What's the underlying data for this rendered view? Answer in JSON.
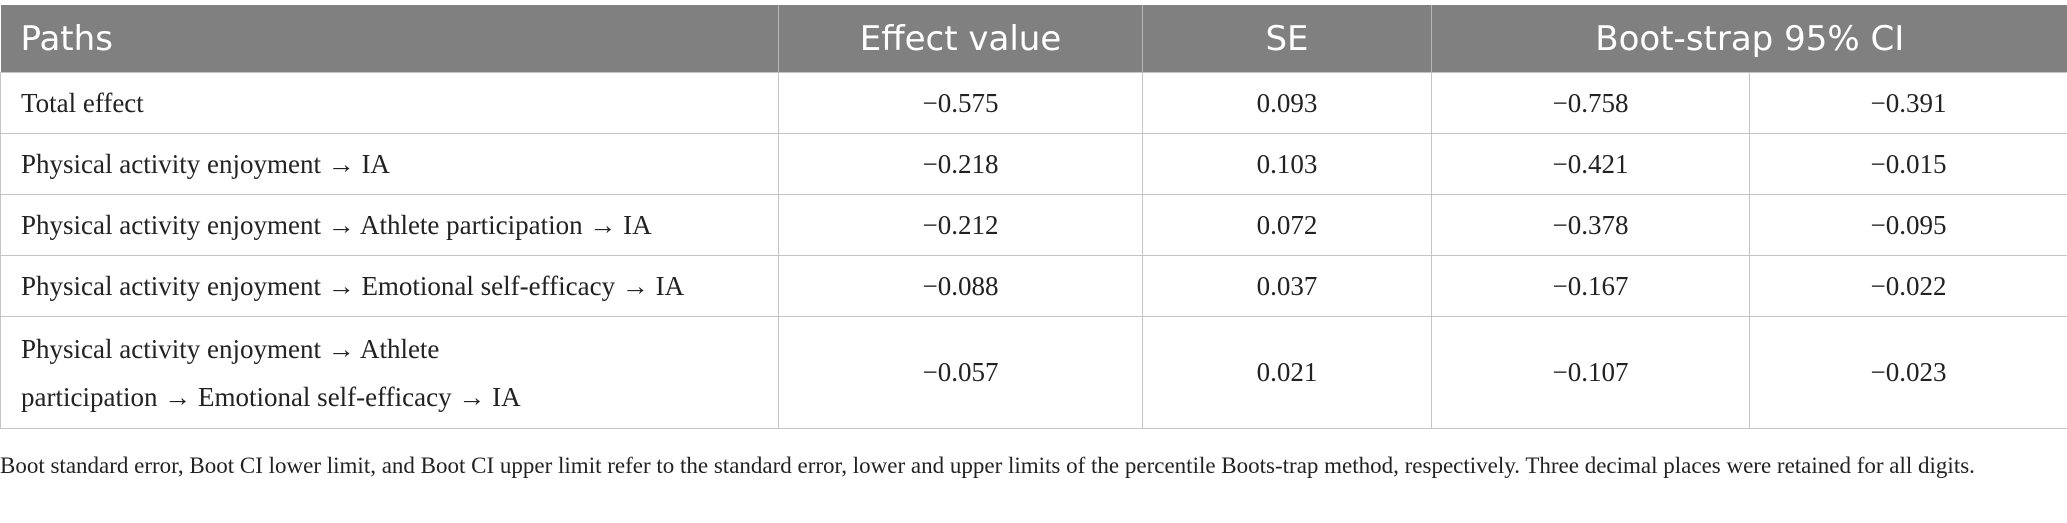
{
  "table": {
    "headers": {
      "paths": "Paths",
      "effect_value": "Effect value",
      "se": "SE",
      "ci": "Boot-strap 95% CI"
    },
    "rows": [
      {
        "path": "Total effect",
        "effect": "−0.575",
        "se": "0.093",
        "ci_lower": "−0.758",
        "ci_upper": "−0.391"
      },
      {
        "path": "Physical activity enjoyment → IA",
        "effect": "−0.218",
        "se": "0.103",
        "ci_lower": "−0.421",
        "ci_upper": "−0.015"
      },
      {
        "path": "Physical activity enjoyment → Athlete participation → IA",
        "effect": "−0.212",
        "se": "0.072",
        "ci_lower": "−0.378",
        "ci_upper": "−0.095"
      },
      {
        "path": "Physical activity enjoyment → Emotional self-efficacy → IA",
        "effect": "−0.088",
        "se": "0.037",
        "ci_lower": "−0.167",
        "ci_upper": "−0.022"
      },
      {
        "path_line1": "Physical activity enjoyment → Athlete",
        "path_line2": "participation → Emotional self-efficacy → IA",
        "effect": "−0.057",
        "se": "0.021",
        "ci_lower": "−0.107",
        "ci_upper": "−0.023"
      }
    ]
  },
  "footnote": "Boot standard error, Boot CI lower limit, and Boot CI upper limit refer to the standard error, lower and upper limits of the percentile Boots-trap method, respectively. Three decimal places were retained for all digits."
}
